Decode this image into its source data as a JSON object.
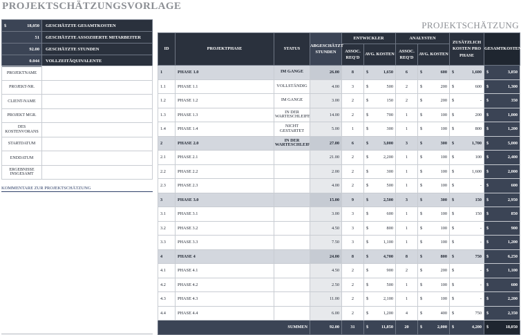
{
  "title": "PROJEKTSCHÄTZUNGSVORLAGE",
  "subtitle": "PROJEKTSCHÄTZUNG",
  "summary": [
    {
      "currency": "$",
      "value": "18,050",
      "label": "GESCHÄTZTE GESAMTKOSTEN"
    },
    {
      "currency": "",
      "value": "51",
      "label": "GESCHÄTZTE ASSOZIIERTE MITARBEITER"
    },
    {
      "currency": "",
      "value": "92.00",
      "label": "GESCHÄTZTE STUNDEN"
    },
    {
      "currency": "",
      "value": "0.044",
      "label": "VOLLZEITÄQUIVALENTE"
    }
  ],
  "info_fields": [
    "PROJEKTNAME",
    "PROJEKT-NR.",
    "CLIENT-NAME",
    "PROJEKT MGR.",
    "DES KOSTENVORANS",
    "STARTDATUM",
    "ENDDATUM",
    "ERGEBNISSE INSGESAMT"
  ],
  "comments_label": "KOMMENTARE ZUR PROJEKTSCHÄTZUNG",
  "headers": {
    "id": "ID",
    "phase": "PROJEKTPHASE",
    "status": "STATUS",
    "hours": "ABGESCHÄTZT STUNDEN",
    "developer": "ENTWICKLER",
    "analysts": "ANALYSTEN",
    "additional": "ZUSÄTZLICH KOSTEN PRO PHASE",
    "total": "GESAMTKOSTEN",
    "assoc": "ASSOC. REQ'D",
    "avg": "AVG. KOSTEN"
  },
  "rows": [
    {
      "type": "phase",
      "id": "1",
      "name": "PHASE 1.0",
      "status": "IM GANGE",
      "hours": "26.00",
      "dev_assoc": "8",
      "dev_cost": "1,650",
      "an_assoc": "6",
      "an_cost": "600",
      "add": "1,600",
      "total": "3,850"
    },
    {
      "type": "task",
      "id": "1.1",
      "name": "PHASE 1.1",
      "status": "VOLLSTÄNDIG",
      "hours": "4.00",
      "dev_assoc": "3",
      "dev_cost": "500",
      "an_assoc": "2",
      "an_cost": "200",
      "add": "600",
      "total": "1,300"
    },
    {
      "type": "task",
      "id": "1.2",
      "name": "PHASE 1.2",
      "status": "IM GANGE",
      "hours": "3.00",
      "dev_assoc": "2",
      "dev_cost": "150",
      "an_assoc": "2",
      "an_cost": "200",
      "add": "-",
      "total": "350"
    },
    {
      "type": "task",
      "id": "1.3",
      "name": "PHASE 1.3",
      "status": "IN DER WARTESCHLEIFE",
      "hours": "14.00",
      "dev_assoc": "2",
      "dev_cost": "700",
      "an_assoc": "1",
      "an_cost": "100",
      "add": "200",
      "total": "1,000"
    },
    {
      "type": "task",
      "id": "1.4",
      "name": "PHASE 1.4",
      "status": "NICHT GESTARTET",
      "hours": "5.00",
      "dev_assoc": "1",
      "dev_cost": "300",
      "an_assoc": "1",
      "an_cost": "100",
      "add": "800",
      "total": "1,200"
    },
    {
      "type": "phase",
      "id": "2",
      "name": "PHASE 2.0",
      "status": "IN DER WARTESCHLEIFE",
      "hours": "27.00",
      "dev_assoc": "6",
      "dev_cost": "3,000",
      "an_assoc": "3",
      "an_cost": "300",
      "add": "1,700",
      "total": "5,000"
    },
    {
      "type": "task",
      "id": "2.1",
      "name": "PHASE 2.1",
      "status": "",
      "hours": "21.00",
      "dev_assoc": "2",
      "dev_cost": "2,200",
      "an_assoc": "1",
      "an_cost": "100",
      "add": "100",
      "total": "2,400"
    },
    {
      "type": "task",
      "id": "2.2",
      "name": "PHASE 2.2",
      "status": "",
      "hours": "2.00",
      "dev_assoc": "2",
      "dev_cost": "300",
      "an_assoc": "1",
      "an_cost": "100",
      "add": "1,600",
      "total": "2,000"
    },
    {
      "type": "task",
      "id": "2.3",
      "name": "PHASE 2.3",
      "status": "",
      "hours": "4.00",
      "dev_assoc": "2",
      "dev_cost": "500",
      "an_assoc": "1",
      "an_cost": "100",
      "add": "-",
      "total": "600"
    },
    {
      "type": "phase",
      "id": "3",
      "name": "PHASE 3.0",
      "status": "",
      "hours": "15.00",
      "dev_assoc": "9",
      "dev_cost": "2,500",
      "an_assoc": "3",
      "an_cost": "300",
      "add": "150",
      "total": "2,950"
    },
    {
      "type": "task",
      "id": "3.1",
      "name": "PHASE 3.1",
      "status": "",
      "hours": "3.00",
      "dev_assoc": "3",
      "dev_cost": "600",
      "an_assoc": "1",
      "an_cost": "100",
      "add": "150",
      "total": "850"
    },
    {
      "type": "task",
      "id": "3.2",
      "name": "PHASE 3.2",
      "status": "",
      "hours": "4.50",
      "dev_assoc": "3",
      "dev_cost": "800",
      "an_assoc": "1",
      "an_cost": "100",
      "add": "-",
      "total": "900"
    },
    {
      "type": "task",
      "id": "3.3",
      "name": "PHASE 3.3",
      "status": "",
      "hours": "7.50",
      "dev_assoc": "3",
      "dev_cost": "1,100",
      "an_assoc": "1",
      "an_cost": "100",
      "add": "-",
      "total": "1,200"
    },
    {
      "type": "phase",
      "id": "4",
      "name": "PHASE 4",
      "status": "",
      "hours": "24.00",
      "dev_assoc": "8",
      "dev_cost": "4,700",
      "an_assoc": "8",
      "an_cost": "800",
      "add": "750",
      "total": "6,250"
    },
    {
      "type": "task",
      "id": "4.1",
      "name": "PHASE 4.1",
      "status": "",
      "hours": "4.50",
      "dev_assoc": "2",
      "dev_cost": "900",
      "an_assoc": "2",
      "an_cost": "200",
      "add": "-",
      "total": "1,100"
    },
    {
      "type": "task",
      "id": "4.2",
      "name": "PHASE 4.2",
      "status": "",
      "hours": "2.50",
      "dev_assoc": "2",
      "dev_cost": "500",
      "an_assoc": "1",
      "an_cost": "100",
      "add": "-",
      "total": "600"
    },
    {
      "type": "task",
      "id": "4.3",
      "name": "PHASE 4.3",
      "status": "",
      "hours": "11.00",
      "dev_assoc": "2",
      "dev_cost": "2,100",
      "an_assoc": "1",
      "an_cost": "100",
      "add": "-",
      "total": "2,200"
    },
    {
      "type": "task",
      "id": "4.4",
      "name": "PHASE 4.4",
      "status": "",
      "hours": "6.00",
      "dev_assoc": "2",
      "dev_cost": "1,200",
      "an_assoc": "4",
      "an_cost": "400",
      "add": "750",
      "total": "2,350"
    }
  ],
  "totals": {
    "label": "SUMMEN",
    "hours": "92.00",
    "dev_assoc": "31",
    "dev_cost": "11,850",
    "an_assoc": "20",
    "an_cost": "2,000",
    "add": "4,200",
    "total": "18,050"
  },
  "currency": "$",
  "colors": {
    "header_dark": "#2a313d",
    "total_column": "#3b4455",
    "phase_row": "#d3d7de",
    "title_gray": "#8c8f94"
  }
}
